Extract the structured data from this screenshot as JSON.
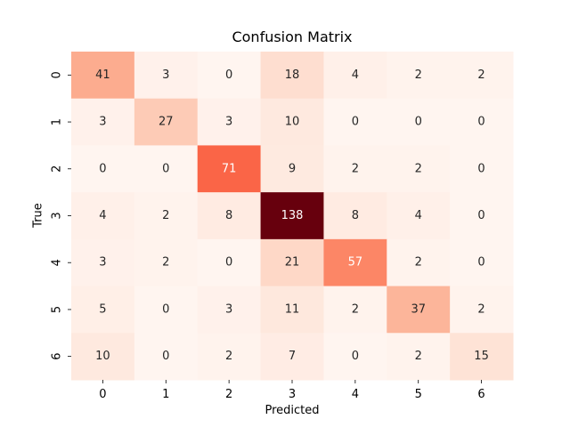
{
  "chart_data": {
    "type": "heatmap",
    "title": "Confusion Matrix",
    "xlabel": "Predicted",
    "ylabel": "True",
    "x_categories": [
      "0",
      "1",
      "2",
      "3",
      "4",
      "5",
      "6"
    ],
    "y_categories": [
      "0",
      "1",
      "2",
      "3",
      "4",
      "5",
      "6"
    ],
    "values": [
      [
        41,
        3,
        0,
        18,
        4,
        2,
        2
      ],
      [
        3,
        27,
        3,
        10,
        0,
        0,
        0
      ],
      [
        0,
        0,
        71,
        9,
        2,
        2,
        0
      ],
      [
        4,
        2,
        8,
        138,
        8,
        4,
        0
      ],
      [
        3,
        2,
        0,
        21,
        57,
        2,
        0
      ],
      [
        5,
        0,
        3,
        11,
        2,
        37,
        2
      ],
      [
        10,
        0,
        2,
        7,
        0,
        2,
        15
      ]
    ],
    "colormap": "Reds",
    "value_range": [
      0,
      138
    ],
    "colorbar": false,
    "annotated": true,
    "grid": false,
    "colors": {
      "low": "#fff5f0",
      "high": "#67000d",
      "text_dark": "#262626",
      "text_light": "#ffffff"
    }
  }
}
